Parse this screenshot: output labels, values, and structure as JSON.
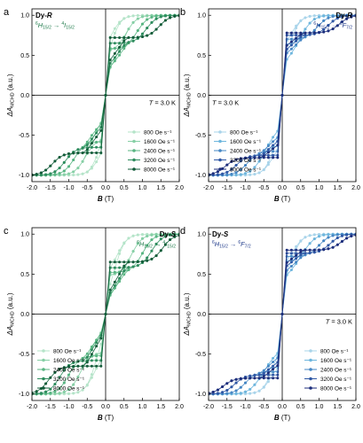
{
  "chart_data": [
    {
      "type": "line",
      "panel_label": "a",
      "sample": {
        "prefix": "Dy-",
        "enantiomer": "R"
      },
      "transition": {
        "initial": "6H15/2",
        "final": "4I15/2",
        "initial_mult": "6",
        "initial_term": "H",
        "initial_j": "15/2",
        "final_mult": "4",
        "final_term": "I",
        "final_j": "15/2",
        "arrow": "→"
      },
      "temperature": {
        "symbol": "T",
        "value": "= 3.0 K"
      },
      "xlabel": "B (T)",
      "xlabel_symbol": "B",
      "xlabel_unit": "(T)",
      "ylabel": "ΔA MCHD (a.u.)",
      "ylabel_prefix": "ΔA",
      "ylabel_sub": "MCHD",
      "ylabel_unit": "(a.u.)",
      "xlim": [
        -2.0,
        2.0
      ],
      "ylim": [
        -1.08,
        1.08
      ],
      "xticks": [
        "-2.0",
        "-1.5",
        "-1.0",
        "-0.5",
        "0.0",
        "0.5",
        "1.0",
        "1.5",
        "2.0"
      ],
      "yticks": [
        "-1.0",
        "-0.5",
        "0.0",
        "0.5",
        "1.0"
      ],
      "legend_position": "lower-right",
      "series": [
        {
          "name": "800 Oe s⁻¹",
          "color": "#b5e4c9",
          "coercive_field": 0.15,
          "remanence": 0.22,
          "plateau": 0.5
        },
        {
          "name": "1600 Oe s⁻¹",
          "color": "#86cfa5",
          "coercive_field": 0.55,
          "remanence": 0.28,
          "plateau": 0.54
        },
        {
          "name": "2400 Oe s⁻¹",
          "color": "#58b582",
          "coercive_field": 0.85,
          "remanence": 0.32,
          "plateau": 0.58
        },
        {
          "name": "3200 Oe s⁻¹",
          "color": "#2e8d5e",
          "coercive_field": 1.1,
          "remanence": 0.36,
          "plateau": 0.65
        },
        {
          "name": "8000 Oe s⁻¹",
          "color": "#125c39",
          "coercive_field": 1.45,
          "remanence": 0.4,
          "plateau": 0.72
        }
      ]
    },
    {
      "type": "line",
      "panel_label": "b",
      "sample": {
        "prefix": "Dy-",
        "enantiomer": "R"
      },
      "transition": {
        "initial": "6H15/2",
        "final": "6F7/2",
        "initial_mult": "6",
        "initial_term": "H",
        "initial_j": "15/2",
        "final_mult": "6",
        "final_term": "F",
        "final_j": "7/2",
        "arrow": "→"
      },
      "temperature": {
        "symbol": "T",
        "value": "= 3.0 K"
      },
      "xlabel": "B (T)",
      "xlabel_symbol": "B",
      "xlabel_unit": "(T)",
      "ylabel": "ΔA MCHD (a.u.)",
      "ylabel_prefix": "ΔA",
      "ylabel_sub": "MCHD",
      "ylabel_unit": "(a.u.)",
      "xlim": [
        -2.0,
        2.0
      ],
      "ylim": [
        -1.08,
        1.08
      ],
      "xticks": [
        "-2.0",
        "-1.5",
        "-1.0",
        "-0.5",
        "0.0",
        "0.5",
        "1.0",
        "1.5",
        "2.0"
      ],
      "yticks": [
        "-1.0",
        "-0.5",
        "0.0",
        "0.5",
        "1.0"
      ],
      "legend_position": "lower-left",
      "series": [
        {
          "name": "800 Oe s⁻¹",
          "color": "#a9d4ea",
          "coercive_field": 0.25,
          "remanence": 0.3,
          "plateau": 0.55
        },
        {
          "name": "1600 Oe s⁻¹",
          "color": "#6eb6dd",
          "coercive_field": 0.6,
          "remanence": 0.4,
          "plateau": 0.62
        },
        {
          "name": "2400 Oe s⁻¹",
          "color": "#4687c4",
          "coercive_field": 0.95,
          "remanence": 0.5,
          "plateau": 0.7
        },
        {
          "name": "3200 Oe s⁻¹",
          "color": "#2f58a5",
          "coercive_field": 1.25,
          "remanence": 0.55,
          "plateau": 0.75
        },
        {
          "name": "8000 Oe s⁻¹",
          "color": "#1c2e7c",
          "coercive_field": 1.55,
          "remanence": 0.6,
          "plateau": 0.78
        }
      ]
    },
    {
      "type": "line",
      "panel_label": "c",
      "sample": {
        "prefix": "Dy-",
        "enantiomer": "S"
      },
      "transition": {
        "initial": "6H15/2",
        "final": "4I15/2",
        "initial_mult": "6",
        "initial_term": "H",
        "initial_j": "15/2",
        "final_mult": "4",
        "final_term": "I",
        "final_j": "15/2",
        "arrow": "→"
      },
      "temperature": {
        "symbol": "",
        "value": ""
      },
      "xlabel": "B (T)",
      "xlabel_symbol": "B",
      "xlabel_unit": "(T)",
      "ylabel": "ΔA MCHD (a.u.)",
      "ylabel_prefix": "ΔA",
      "ylabel_sub": "MCHD",
      "ylabel_unit": "(a.u.)",
      "xlim": [
        -2.0,
        2.0
      ],
      "ylim": [
        -1.08,
        1.08
      ],
      "xticks": [
        "-2.0",
        "-1.5",
        "-1.0",
        "-0.5",
        "0.0",
        "0.5",
        "1.0",
        "1.5",
        "2.0"
      ],
      "yticks": [
        "-1.0",
        "-0.5",
        "0.0",
        "0.5",
        "1.0"
      ],
      "legend_position": "lower-left",
      "series": [
        {
          "name": "800 Oe s⁻¹",
          "color": "#b5e4c9",
          "coercive_field": 0.3,
          "remanence": 0.15,
          "plateau": 0.45
        },
        {
          "name": "1600 Oe s⁻¹",
          "color": "#86cfa5",
          "coercive_field": 0.7,
          "remanence": 0.18,
          "plateau": 0.48
        },
        {
          "name": "2400 Oe s⁻¹",
          "color": "#58b582",
          "coercive_field": 1.0,
          "remanence": 0.2,
          "plateau": 0.52
        },
        {
          "name": "3200 Oe s⁻¹",
          "color": "#2e8d5e",
          "coercive_field": 1.25,
          "remanence": 0.22,
          "plateau": 0.58
        },
        {
          "name": "8000 Oe s⁻¹",
          "color": "#125c39",
          "coercive_field": 1.55,
          "remanence": 0.25,
          "plateau": 0.65
        }
      ]
    },
    {
      "type": "line",
      "panel_label": "d",
      "sample": {
        "prefix": "Dy-",
        "enantiomer": "S"
      },
      "transition": {
        "initial": "6H15/2",
        "final": "6F7/2",
        "initial_mult": "6",
        "initial_term": "H",
        "initial_j": "15/2",
        "final_mult": "6",
        "final_term": "F",
        "final_j": "7/2",
        "arrow": "→"
      },
      "temperature": {
        "symbol": "T",
        "value": "= 3.0 K"
      },
      "xlabel": "B (T)",
      "xlabel_symbol": "B",
      "xlabel_unit": "(T)",
      "ylabel": "ΔA MCHD (a.u.)",
      "ylabel_prefix": "ΔA",
      "ylabel_sub": "MCHD",
      "ylabel_unit": "(a.u.)",
      "xlim": [
        -2.0,
        2.0
      ],
      "ylim": [
        -1.08,
        1.08
      ],
      "xticks": [
        "-2.0",
        "-1.5",
        "-1.0",
        "-0.5",
        "0.0",
        "0.5",
        "1.0",
        "1.5",
        "2.0"
      ],
      "yticks": [
        "-1.0",
        "-0.5",
        "0.0",
        "0.5",
        "1.0"
      ],
      "legend_position": "lower-right",
      "series": [
        {
          "name": "800 Oe s⁻¹",
          "color": "#a9d4ea",
          "coercive_field": 0.3,
          "remanence": 0.35,
          "plateau": 0.58
        },
        {
          "name": "1600 Oe s⁻¹",
          "color": "#6eb6dd",
          "coercive_field": 0.65,
          "remanence": 0.45,
          "plateau": 0.65
        },
        {
          "name": "2400 Oe s⁻¹",
          "color": "#4687c4",
          "coercive_field": 1.0,
          "remanence": 0.52,
          "plateau": 0.72
        },
        {
          "name": "3200 Oe s⁻¹",
          "color": "#2f58a5",
          "coercive_field": 1.3,
          "remanence": 0.58,
          "plateau": 0.76
        },
        {
          "name": "8000 Oe s⁻¹",
          "color": "#1c2e7c",
          "coercive_field": 1.6,
          "remanence": 0.62,
          "plateau": 0.8
        }
      ]
    }
  ]
}
